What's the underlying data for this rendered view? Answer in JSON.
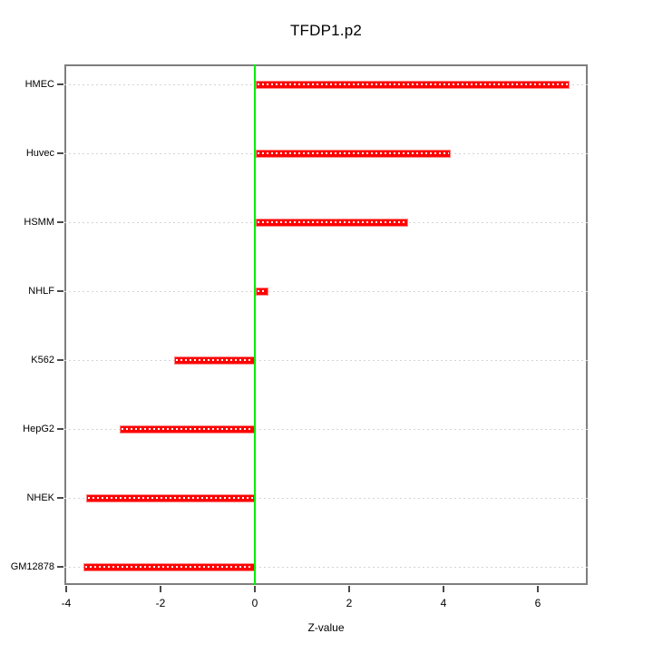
{
  "chart_data": {
    "type": "bar",
    "orientation": "horizontal",
    "title": "TFDP1.p2",
    "xlabel": "Z-value",
    "categories": [
      "HMEC",
      "Huvec",
      "HSMM",
      "NHLF",
      "K562",
      "HepG2",
      "NHEK",
      "GM12878"
    ],
    "values": [
      6.65,
      4.14,
      3.24,
      0.27,
      -1.71,
      -2.87,
      -3.57,
      -3.64
    ],
    "series": [
      {
        "name": "Z-value",
        "values": [
          6.65,
          4.14,
          3.24,
          0.27,
          -1.71,
          -2.87,
          -3.57,
          -3.64
        ]
      }
    ],
    "xticks": [
      -4,
      -2,
      0,
      2,
      4,
      6
    ],
    "xlim": [
      -4.05,
      7.05
    ],
    "zero_line_x": 0,
    "grid": true,
    "legend_position": "none",
    "colors": {
      "bar": "#ff0000",
      "bar_inner_dash": "#ffffff",
      "zero_line": "#00ee00",
      "gridline": "#d4d4d4",
      "box": "#7e7e7e",
      "tick": "#4a4a4a",
      "text": "#000000",
      "background": "#ffffff"
    }
  }
}
